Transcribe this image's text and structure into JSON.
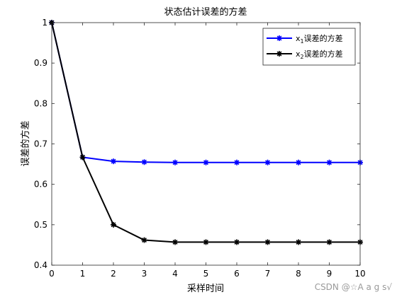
{
  "chart_data": {
    "type": "line",
    "title": "状态估计误差的方差",
    "xlabel": "采样时间",
    "ylabel": "误差的方差",
    "xlim": [
      0,
      10
    ],
    "ylim": [
      0.4,
      1.0
    ],
    "x_ticks": [
      0,
      1,
      2,
      3,
      4,
      5,
      6,
      7,
      8,
      9,
      10
    ],
    "y_ticks": [
      0.4,
      0.5,
      0.6,
      0.7,
      0.8,
      0.9,
      1.0
    ],
    "y_tick_labels": [
      "0.4",
      "0.5",
      "0.6",
      "0.7",
      "0.8",
      "0.9",
      "1"
    ],
    "legend_position": "top-right",
    "series": [
      {
        "name_main": "x",
        "name_sub": "1",
        "name_rest": "误差的方差",
        "color": "#0000ff",
        "marker": "asterisk",
        "x": [
          0,
          1,
          2,
          3,
          4,
          5,
          6,
          7,
          8,
          9,
          10
        ],
        "values": [
          1.0,
          0.667,
          0.657,
          0.655,
          0.654,
          0.654,
          0.654,
          0.654,
          0.654,
          0.654,
          0.654
        ]
      },
      {
        "name_main": "x",
        "name_sub": "2",
        "name_rest": "误差的方差",
        "color": "#000000",
        "marker": "asterisk",
        "x": [
          0,
          1,
          2,
          3,
          4,
          5,
          6,
          7,
          8,
          9,
          10
        ],
        "values": [
          1.0,
          0.667,
          0.5,
          0.462,
          0.457,
          0.457,
          0.457,
          0.457,
          0.457,
          0.457,
          0.457
        ]
      }
    ]
  },
  "watermark": "CSDN @☆A a g s√"
}
